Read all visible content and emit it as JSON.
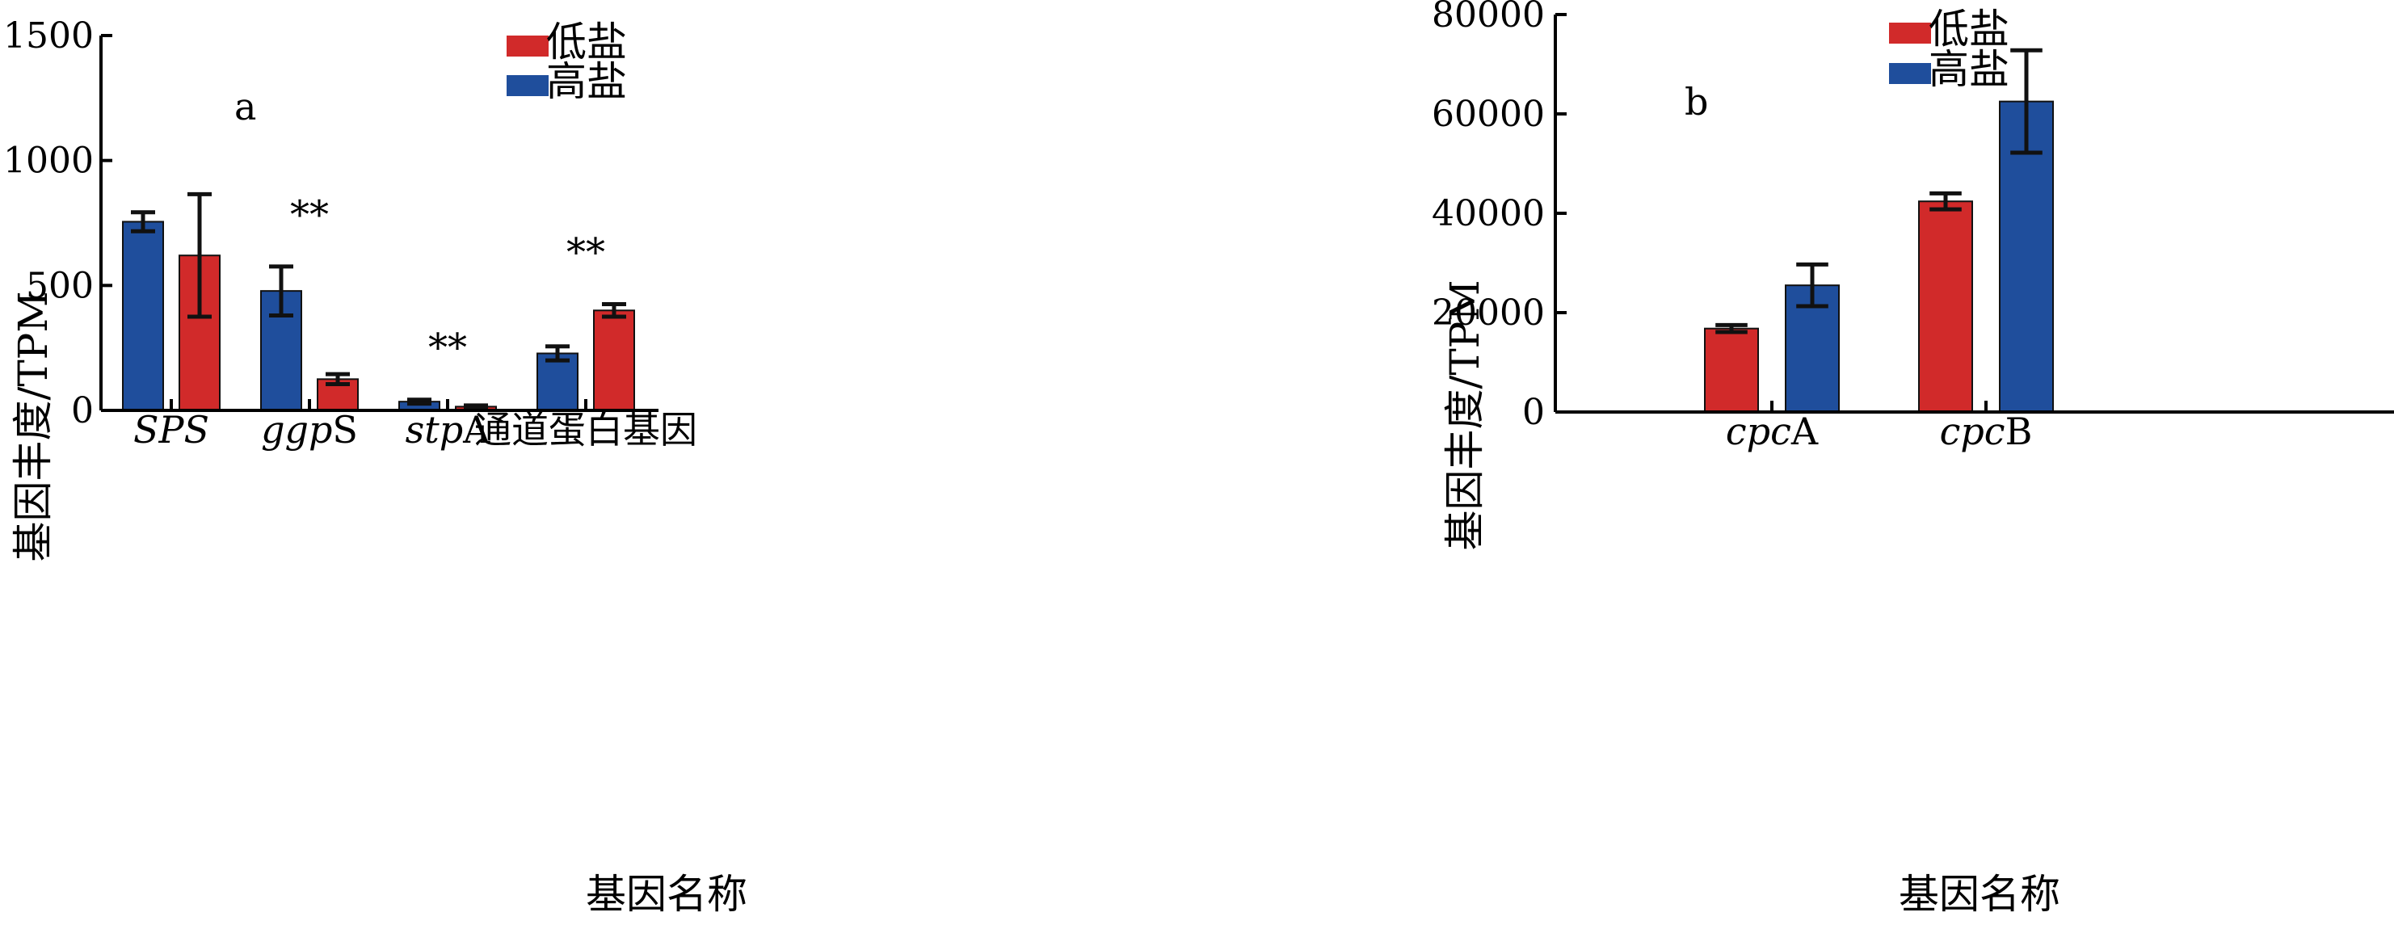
{
  "colors": {
    "low_salt": "#d12a2a",
    "high_salt": "#1f4e9c",
    "axis": "#000000",
    "errorbar": "#111111"
  },
  "chart_data": [
    {
      "type": "bar",
      "panel_label": "a",
      "ylabel": "基因丰度/TPM",
      "xlabel": "基因名称",
      "ylim": [
        0,
        1500
      ],
      "yticks": [
        "0",
        "500",
        "1000",
        "1500"
      ],
      "categories": [
        {
          "parts": [
            {
              "t": "SPS",
              "i": true
            }
          ]
        },
        {
          "parts": [
            {
              "t": "ggp",
              "i": true
            },
            {
              "t": "S",
              "i": false
            }
          ]
        },
        {
          "parts": [
            {
              "t": "stp",
              "i": true
            },
            {
              "t": "A",
              "i": false
            }
          ]
        },
        {
          "parts": [
            {
              "t": "通道蛋白基因",
              "i": false
            }
          ]
        }
      ],
      "series_order": [
        [
          "high_salt",
          "low_salt"
        ],
        [
          "high_salt",
          "low_salt"
        ],
        [
          "high_salt",
          "low_salt"
        ],
        [
          "high_salt",
          "low_salt"
        ]
      ],
      "series": [
        {
          "key": "low_salt",
          "name": "低盐",
          "values": [
            620,
            125,
            15,
            400
          ],
          "errors": [
            245,
            20,
            5,
            25
          ]
        },
        {
          "key": "high_salt",
          "name": "高盐",
          "values": [
            755,
            478,
            35,
            228
          ],
          "errors": [
            38,
            98,
            8,
            28
          ]
        }
      ],
      "significance": [
        "",
        "**",
        "**",
        "**"
      ],
      "legend": [
        "低盐",
        "高盐"
      ],
      "legend_position": "top-right",
      "grid": false
    },
    {
      "type": "bar",
      "panel_label": "b",
      "ylabel": "基因丰度/TPM",
      "xlabel": "基因名称",
      "ylim": [
        0,
        80000
      ],
      "yticks": [
        "0",
        "20000",
        "40000",
        "60000",
        "80000"
      ],
      "categories": [
        {
          "parts": [
            {
              "t": "cpc",
              "i": true
            },
            {
              "t": "A",
              "i": false
            }
          ]
        },
        {
          "parts": [
            {
              "t": "cpc",
              "i": true
            },
            {
              "t": "B",
              "i": false
            }
          ]
        }
      ],
      "series_order": [
        [
          "low_salt",
          "high_salt"
        ],
        [
          "low_salt",
          "high_salt"
        ]
      ],
      "series": [
        {
          "key": "low_salt",
          "name": "低盐",
          "values": [
            16800,
            42400
          ],
          "errors": [
            700,
            1600
          ]
        },
        {
          "key": "high_salt",
          "name": "高盐",
          "values": [
            25500,
            62500
          ],
          "errors": [
            4200,
            10300
          ]
        }
      ],
      "significance": [
        "",
        ""
      ],
      "legend": [
        "低盐",
        "高盐"
      ],
      "legend_position": "top-left",
      "grid": false
    }
  ]
}
